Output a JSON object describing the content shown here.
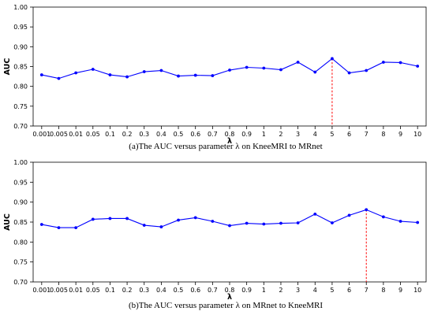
{
  "chart_data": [
    {
      "type": "line",
      "caption": "(a)The AUC versus parameter λ on KneeMRI to MRnet",
      "xlabel": "λ",
      "ylabel": "AUC",
      "categories": [
        "0.001",
        "0.005",
        "0.01",
        "0.05",
        "0.1",
        "0.2",
        "0.3",
        "0.4",
        "0.5",
        "0.6",
        "0.7",
        "0.8",
        "0.9",
        "1",
        "2",
        "3",
        "4",
        "5",
        "6",
        "7",
        "8",
        "9",
        "10"
      ],
      "yticks": [
        "0.70",
        "0.75",
        "0.80",
        "0.85",
        "0.90",
        "0.95",
        "1.00"
      ],
      "ylim": [
        0.7,
        1.0
      ],
      "series": [
        {
          "values": [
            0.829,
            0.82,
            0.834,
            0.843,
            0.829,
            0.824,
            0.837,
            0.84,
            0.826,
            0.828,
            0.827,
            0.841,
            0.848,
            0.846,
            0.842,
            0.861,
            0.836,
            0.87,
            0.834,
            0.84,
            0.861,
            0.86,
            0.851
          ]
        }
      ],
      "highlight": {
        "category": "5",
        "value": 0.87
      },
      "colors": {
        "line": "#0000ff",
        "highlight": "#ff0000"
      },
      "grid": false
    },
    {
      "type": "line",
      "caption": "(b)The AUC versus parameter λ on MRnet to KneeMRI",
      "xlabel": "λ",
      "ylabel": "AUC",
      "categories": [
        "0.001",
        "0.005",
        "0.01",
        "0.05",
        "0.1",
        "0.2",
        "0.3",
        "0.4",
        "0.5",
        "0.6",
        "0.7",
        "0.8",
        "0.9",
        "1",
        "2",
        "3",
        "4",
        "5",
        "6",
        "7",
        "8",
        "9",
        "10"
      ],
      "yticks": [
        "0.70",
        "0.75",
        "0.80",
        "0.85",
        "0.90",
        "0.95",
        "1.00"
      ],
      "ylim": [
        0.7,
        1.0
      ],
      "series": [
        {
          "values": [
            0.844,
            0.836,
            0.836,
            0.857,
            0.859,
            0.859,
            0.842,
            0.838,
            0.855,
            0.861,
            0.852,
            0.841,
            0.847,
            0.845,
            0.847,
            0.848,
            0.87,
            0.848,
            0.867,
            0.881,
            0.863,
            0.852,
            0.849
          ]
        }
      ],
      "highlight": {
        "category": "7",
        "value": 0.881
      },
      "colors": {
        "line": "#0000ff",
        "highlight": "#ff0000"
      },
      "grid": false
    }
  ]
}
